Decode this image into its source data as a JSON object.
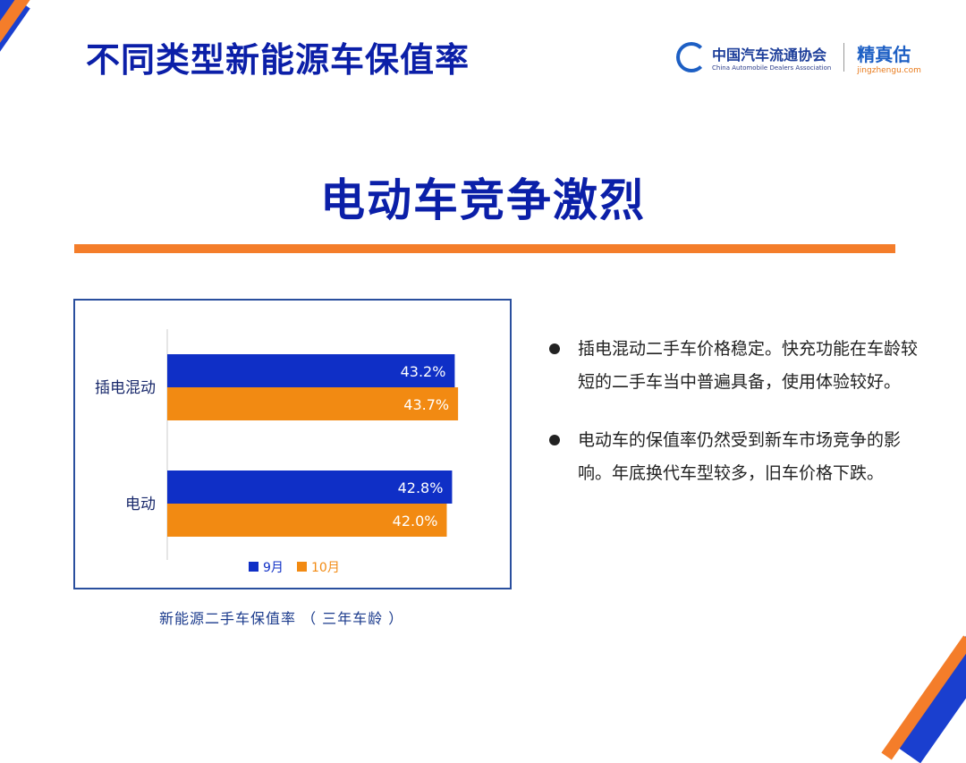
{
  "header": {
    "title": "不同类型新能源车保值率",
    "logo_caada_cn": "中国汽车流通协会",
    "logo_caada_en": "China Automobile Dealers Association",
    "logo_jzg_cn": "精真估",
    "logo_jzg_en": "jingzhengu.com"
  },
  "headline": "电动车竞争激烈",
  "chart_data": {
    "type": "bar",
    "orientation": "horizontal",
    "categories": [
      "插电混动",
      "电动"
    ],
    "series": [
      {
        "name": "9月",
        "values": [
          43.2,
          42.8
        ],
        "color": "#0f2fc6"
      },
      {
        "name": "10月",
        "values": [
          43.7,
          42.0
        ],
        "color": "#f28a12"
      }
    ],
    "data_labels": [
      [
        "43.2%",
        "42.8%"
      ],
      [
        "43.7%",
        "42.0%"
      ]
    ],
    "xlim": [
      0,
      44
    ],
    "legend": "bottom",
    "grid": false,
    "caption": "新能源二手车保值率 （ 三年车龄 ）"
  },
  "bullets": [
    "插电混动二手车价格稳定。快充功能在车龄较短的二手车当中普遍具备，使用体验较好。",
    "电动车的保值率仍然受到新车市场竞争的影响。年底换代车型较多，旧车价格下跌。"
  ]
}
